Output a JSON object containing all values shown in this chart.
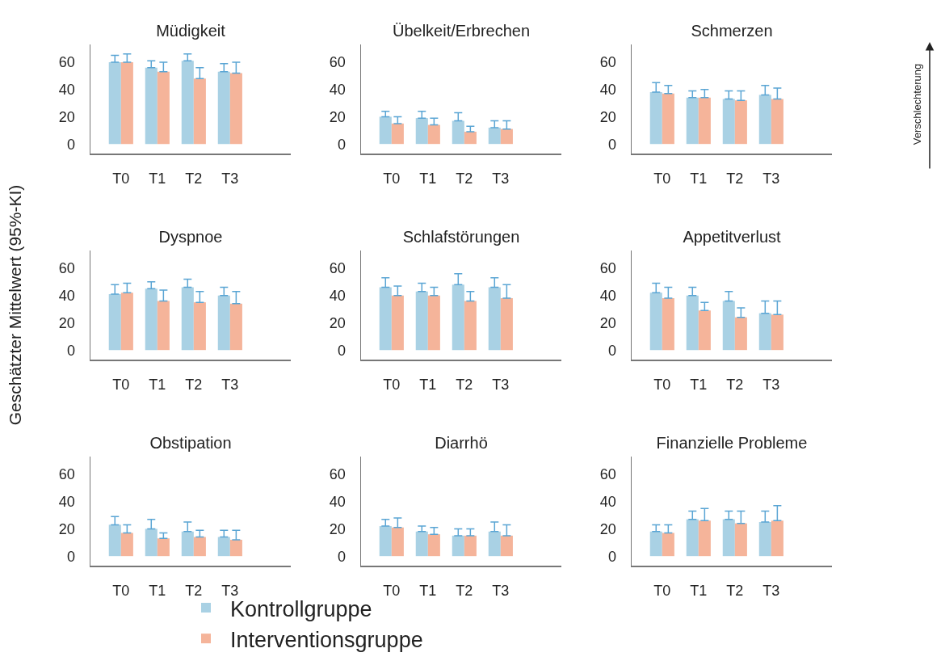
{
  "chart_data": [
    {
      "type": "bar",
      "title": "Müdigkeit",
      "categories": [
        "T0",
        "T1",
        "T2",
        "T3"
      ],
      "ylim": [
        -7,
        73
      ],
      "yticks": [
        0,
        20,
        40,
        60
      ],
      "series": [
        {
          "color": "#a9d1e4",
          "values": [
            60,
            56,
            61,
            53
          ],
          "errors": [
            [
              60,
              65
            ],
            [
              56,
              61
            ],
            [
              61,
              66
            ],
            [
              53,
              59
            ]
          ]
        },
        {
          "color": "#f5b49a",
          "values": [
            60,
            53,
            48,
            52
          ],
          "errors": [
            [
              60,
              66
            ],
            [
              53,
              60
            ],
            [
              48,
              56
            ],
            [
              52,
              60
            ]
          ]
        }
      ]
    },
    {
      "type": "bar",
      "title": "Übelkeit/Erbrechen",
      "categories": [
        "T0",
        "T1",
        "T2",
        "T3"
      ],
      "ylim": [
        -7,
        73
      ],
      "yticks": [
        0,
        20,
        40,
        60
      ],
      "series": [
        {
          "color": "#a9d1e4",
          "values": [
            20,
            19,
            17,
            12
          ],
          "errors": [
            [
              20,
              24
            ],
            [
              19,
              24
            ],
            [
              17,
              23
            ],
            [
              12,
              17
            ]
          ]
        },
        {
          "color": "#f5b49a",
          "values": [
            15,
            14,
            9,
            11
          ],
          "errors": [
            [
              15,
              20
            ],
            [
              14,
              19
            ],
            [
              9,
              13
            ],
            [
              11,
              17
            ]
          ]
        }
      ]
    },
    {
      "type": "bar",
      "title": "Schmerzen",
      "categories": [
        "T0",
        "T1",
        "T2",
        "T3"
      ],
      "ylim": [
        -7,
        73
      ],
      "yticks": [
        0,
        20,
        40,
        60
      ],
      "annotations": [
        "Verschlechterung"
      ],
      "series": [
        {
          "color": "#a9d1e4",
          "values": [
            38,
            34,
            33,
            36
          ],
          "errors": [
            [
              38,
              45
            ],
            [
              34,
              39
            ],
            [
              33,
              39
            ],
            [
              36,
              43
            ]
          ]
        },
        {
          "color": "#f5b49a",
          "values": [
            37,
            34,
            32,
            33
          ],
          "errors": [
            [
              37,
              43
            ],
            [
              34,
              40
            ],
            [
              32,
              39
            ],
            [
              33,
              41
            ]
          ]
        }
      ]
    },
    {
      "type": "bar",
      "title": "Dyspnoe",
      "categories": [
        "T0",
        "T1",
        "T2",
        "T3"
      ],
      "ylim": [
        -7,
        73
      ],
      "yticks": [
        0,
        20,
        40,
        60
      ],
      "ylabel": "Geschätzter Mittelwert (95%-KI)",
      "series": [
        {
          "color": "#a9d1e4",
          "values": [
            41,
            45,
            46,
            40
          ],
          "errors": [
            [
              41,
              48
            ],
            [
              45,
              50
            ],
            [
              46,
              52
            ],
            [
              40,
              46
            ]
          ]
        },
        {
          "color": "#f5b49a",
          "values": [
            42,
            36,
            35,
            34
          ],
          "errors": [
            [
              42,
              49
            ],
            [
              36,
              44
            ],
            [
              35,
              43
            ],
            [
              34,
              43
            ]
          ]
        }
      ]
    },
    {
      "type": "bar",
      "title": "Schlafstörungen",
      "categories": [
        "T0",
        "T1",
        "T2",
        "T3"
      ],
      "ylim": [
        -7,
        73
      ],
      "yticks": [
        0,
        20,
        40,
        60
      ],
      "series": [
        {
          "color": "#a9d1e4",
          "values": [
            46,
            43,
            48,
            46
          ],
          "errors": [
            [
              46,
              53
            ],
            [
              43,
              49
            ],
            [
              48,
              56
            ],
            [
              46,
              53
            ]
          ]
        },
        {
          "color": "#f5b49a",
          "values": [
            40,
            40,
            36,
            38
          ],
          "errors": [
            [
              40,
              47
            ],
            [
              40,
              46
            ],
            [
              36,
              43
            ],
            [
              38,
              48
            ]
          ]
        }
      ]
    },
    {
      "type": "bar",
      "title": "Appetitverlust",
      "categories": [
        "T0",
        "T1",
        "T2",
        "T3"
      ],
      "ylim": [
        -7,
        73
      ],
      "yticks": [
        0,
        20,
        40,
        60
      ],
      "series": [
        {
          "color": "#a9d1e4",
          "values": [
            42,
            40,
            36,
            27
          ],
          "errors": [
            [
              42,
              49
            ],
            [
              40,
              46
            ],
            [
              36,
              43
            ],
            [
              27,
              36
            ]
          ]
        },
        {
          "color": "#f5b49a",
          "values": [
            38,
            29,
            24,
            26
          ],
          "errors": [
            [
              38,
              46
            ],
            [
              29,
              35
            ],
            [
              24,
              31
            ],
            [
              26,
              36
            ]
          ]
        }
      ]
    },
    {
      "type": "bar",
      "title": "Obstipation",
      "categories": [
        "T0",
        "T1",
        "T2",
        "T3"
      ],
      "ylim": [
        -7,
        73
      ],
      "yticks": [
        0,
        20,
        40,
        60
      ],
      "series": [
        {
          "color": "#a9d1e4",
          "values": [
            23,
            20,
            18,
            14
          ],
          "errors": [
            [
              23,
              29
            ],
            [
              20,
              27
            ],
            [
              18,
              25
            ],
            [
              14,
              19
            ]
          ]
        },
        {
          "color": "#f5b49a",
          "values": [
            17,
            13,
            14,
            12
          ],
          "errors": [
            [
              17,
              23
            ],
            [
              13,
              17
            ],
            [
              14,
              19
            ],
            [
              12,
              19
            ]
          ]
        }
      ]
    },
    {
      "type": "bar",
      "title": "Diarrhö",
      "categories": [
        "T0",
        "T1",
        "T2",
        "T3"
      ],
      "ylim": [
        -7,
        73
      ],
      "yticks": [
        0,
        20,
        40,
        60
      ],
      "legend": "bottom",
      "series": [
        {
          "name": "Kontrollgruppe",
          "color": "#a9d1e4",
          "values": [
            22,
            18,
            15,
            18
          ],
          "errors": [
            [
              22,
              27
            ],
            [
              18,
              22
            ],
            [
              15,
              20
            ],
            [
              18,
              25
            ]
          ]
        },
        {
          "name": "Interventionsgruppe",
          "color": "#f5b49a",
          "values": [
            21,
            16,
            15,
            15
          ],
          "errors": [
            [
              21,
              28
            ],
            [
              16,
              21
            ],
            [
              15,
              20
            ],
            [
              15,
              23
            ]
          ]
        }
      ]
    },
    {
      "type": "bar",
      "title": "Finanzielle Probleme",
      "categories": [
        "T0",
        "T1",
        "T2",
        "T3"
      ],
      "ylim": [
        -7,
        73
      ],
      "yticks": [
        0,
        20,
        40,
        60
      ],
      "series": [
        {
          "color": "#a9d1e4",
          "values": [
            18,
            27,
            27,
            25
          ],
          "errors": [
            [
              18,
              23
            ],
            [
              27,
              33
            ],
            [
              27,
              33
            ],
            [
              25,
              33
            ]
          ]
        },
        {
          "color": "#f5b49a",
          "values": [
            17,
            26,
            24,
            26
          ],
          "errors": [
            [
              17,
              23
            ],
            [
              26,
              35
            ],
            [
              24,
              33
            ],
            [
              26,
              37
            ]
          ]
        }
      ]
    }
  ]
}
